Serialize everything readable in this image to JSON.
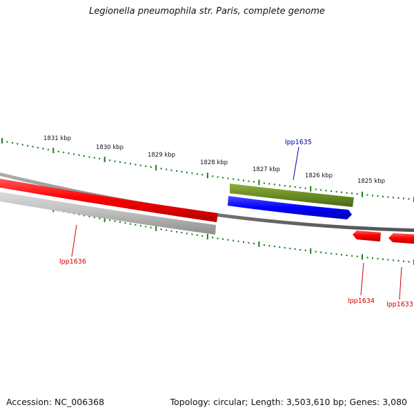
{
  "title": "Legionella pneumophila str. Paris, complete genome",
  "footer": {
    "accession": "Accession: NC_006368",
    "summary": "Topology: circular; Length: 3,503,610 bp; Genes: 3,080"
  },
  "colors": {
    "background": "#ffffff",
    "backbone": "#8c8c8c",
    "tick": "#1a7a1a",
    "forward_gene": "#ff0000",
    "forward_gene_label": "#cc0000",
    "reverse_gene": "#bbbbbb",
    "upper_feature": "#6b8e23",
    "upper_cds": "#0000ff",
    "upper_label": "#0000aa"
  },
  "ruler_labels": [
    "1831 kbp",
    "1830 kbp",
    "1829 kbp",
    "1828 kbp",
    "1827 kbp",
    "1826 kbp",
    "1825 kbp"
  ],
  "gene_labels": [
    {
      "text": "lpp1635",
      "color": "#0000aa"
    },
    {
      "text": "lpp1636",
      "color": "#cc0000"
    },
    {
      "text": "lpp1634",
      "color": "#cc0000"
    },
    {
      "text": "lpp1633",
      "color": "#cc0000"
    }
  ]
}
